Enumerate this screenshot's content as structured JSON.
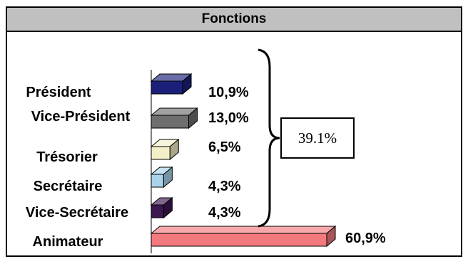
{
  "chart_data": {
    "type": "bar",
    "orientation": "horizontal",
    "style": "3d",
    "title": "Fonctions",
    "categories": [
      "Président",
      "Vice-Président",
      "Trésorier",
      "Secrétaire",
      "Vice-Secrétaire",
      "Animateur"
    ],
    "values": [
      10.9,
      13.0,
      6.5,
      4.3,
      4.3,
      60.9
    ],
    "value_labels": [
      "10,9%",
      "13,0%",
      "6,5%",
      "4,3%",
      "4,3%",
      "60,9%"
    ],
    "bar_colors": [
      "#1b1f7a",
      "#6e6e6e",
      "#f3efc8",
      "#a9d3ea",
      "#3c1650",
      "#f2797d"
    ],
    "xlim": [
      0,
      60.9
    ],
    "grid": false,
    "legend": "none",
    "annotation": {
      "type": "bracket",
      "covers": [
        "Président",
        "Vice-Président",
        "Trésorier",
        "Secrétaire",
        "Vice-Secrétaire"
      ],
      "label": "39.1%"
    }
  }
}
